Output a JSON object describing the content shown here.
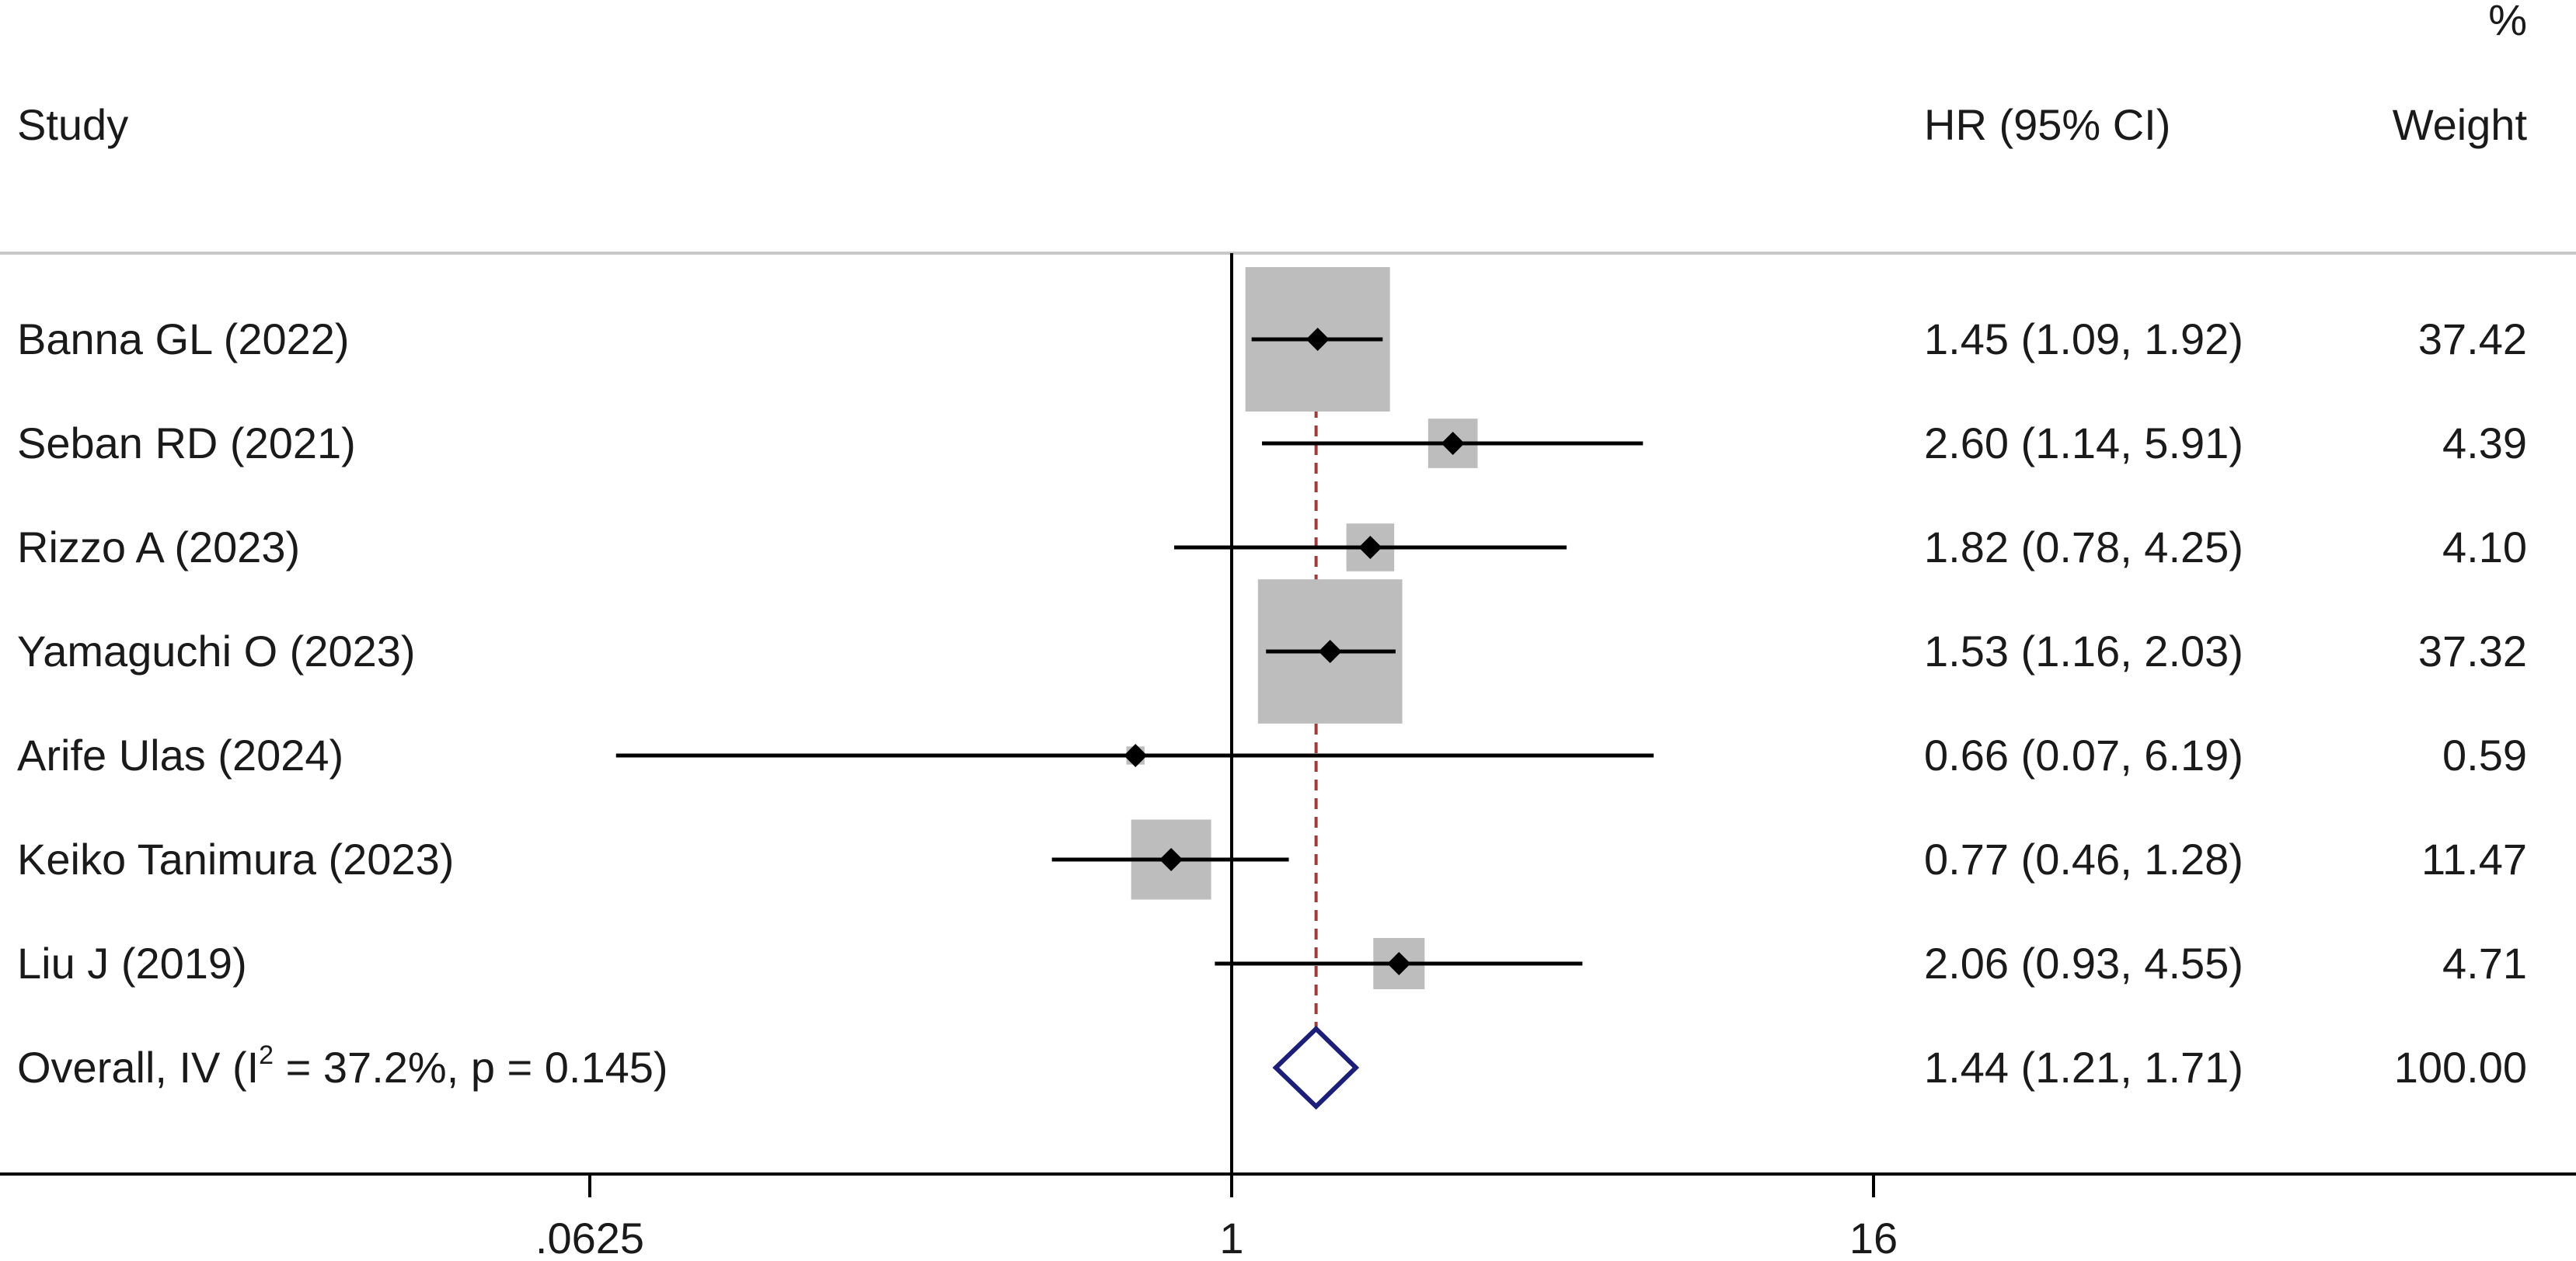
{
  "chart_data": {
    "type": "forest",
    "headers": {
      "study": "Study",
      "effect": "HR (95% CI)",
      "weight_top": "%",
      "weight": "Weight"
    },
    "studies": [
      {
        "label": "Banna GL (2022)",
        "hr": 1.45,
        "lo": 1.09,
        "hi": 1.92,
        "ci_text": "1.45 (1.09, 1.92)",
        "weight": "37.42",
        "w": 37.42
      },
      {
        "label": "Seban RD (2021)",
        "hr": 2.6,
        "lo": 1.14,
        "hi": 5.91,
        "ci_text": "2.60 (1.14, 5.91)",
        "weight": "4.39",
        "w": 4.39
      },
      {
        "label": "Rizzo A (2023)",
        "hr": 1.82,
        "lo": 0.78,
        "hi": 4.25,
        "ci_text": "1.82 (0.78, 4.25)",
        "weight": "4.10",
        "w": 4.1
      },
      {
        "label": "Yamaguchi O (2023)",
        "hr": 1.53,
        "lo": 1.16,
        "hi": 2.03,
        "ci_text": "1.53 (1.16, 2.03)",
        "weight": "37.32",
        "w": 37.32
      },
      {
        "label": "Arife Ulas (2024)",
        "hr": 0.66,
        "lo": 0.07,
        "hi": 6.19,
        "ci_text": "0.66 (0.07, 6.19)",
        "weight": "0.59",
        "w": 0.59
      },
      {
        "label": "Keiko Tanimura (2023)",
        "hr": 0.77,
        "lo": 0.46,
        "hi": 1.28,
        "ci_text": "0.77 (0.46, 1.28)",
        "weight": "11.47",
        "w": 11.47
      },
      {
        "label": "Liu J  (2019)",
        "hr": 2.06,
        "lo": 0.93,
        "hi": 4.55,
        "ci_text": "2.06 (0.93, 4.55)",
        "weight": "4.71",
        "w": 4.71
      }
    ],
    "overall": {
      "label_prefix": "Overall, IV (I",
      "label_sup": "2",
      "label_suffix": " = 37.2%, p = 0.145)",
      "hr": 1.44,
      "lo": 1.21,
      "hi": 1.71,
      "ci_text": "1.44 (1.21, 1.71)",
      "weight": "100.00"
    },
    "x_axis": {
      "scale": "log",
      "ticks": [
        0.0625,
        1,
        16
      ],
      "tick_labels": [
        ".0625",
        "1",
        "16"
      ]
    },
    "reference_line": 1,
    "colors": {
      "box": "#bdbdbd",
      "ci_line": "#000000",
      "point": "#000000",
      "overall_diamond": "#1b1f7a",
      "overall_line": "#a33a3a",
      "axis": "#000000",
      "header_rule": "#c8c8c8"
    }
  }
}
